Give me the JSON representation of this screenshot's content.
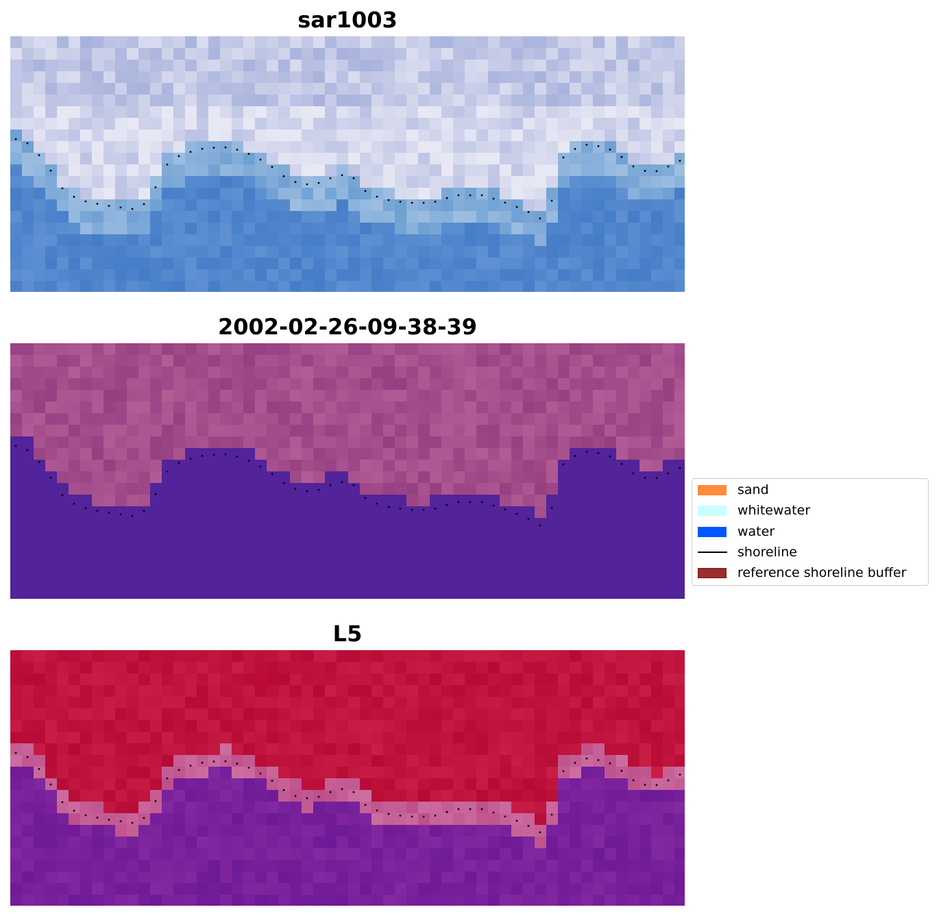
{
  "panels": [
    {
      "title": "sar1003",
      "image": "rgb-satellite"
    },
    {
      "title": "2002-02-26-09-38-39",
      "image": "classified-image"
    },
    {
      "title": "L5",
      "image": "probability-map"
    }
  ],
  "legend": {
    "items": [
      {
        "label": "sand",
        "color": "#ff8c3a",
        "kind": "patch"
      },
      {
        "label": "whitewater",
        "color": "#c8ffff",
        "kind": "patch"
      },
      {
        "label": "water",
        "color": "#0057ff",
        "kind": "patch"
      },
      {
        "label": "shoreline",
        "color": "#000000",
        "kind": "line"
      },
      {
        "label": "reference shoreline buffer",
        "color": "#9b2d2d",
        "kind": "patch"
      }
    ]
  },
  "colors": {
    "water_class": "#52239a",
    "land_class": "#a8508c",
    "prob_land": "#c4143c",
    "prob_water": "#7a1d9a"
  }
}
